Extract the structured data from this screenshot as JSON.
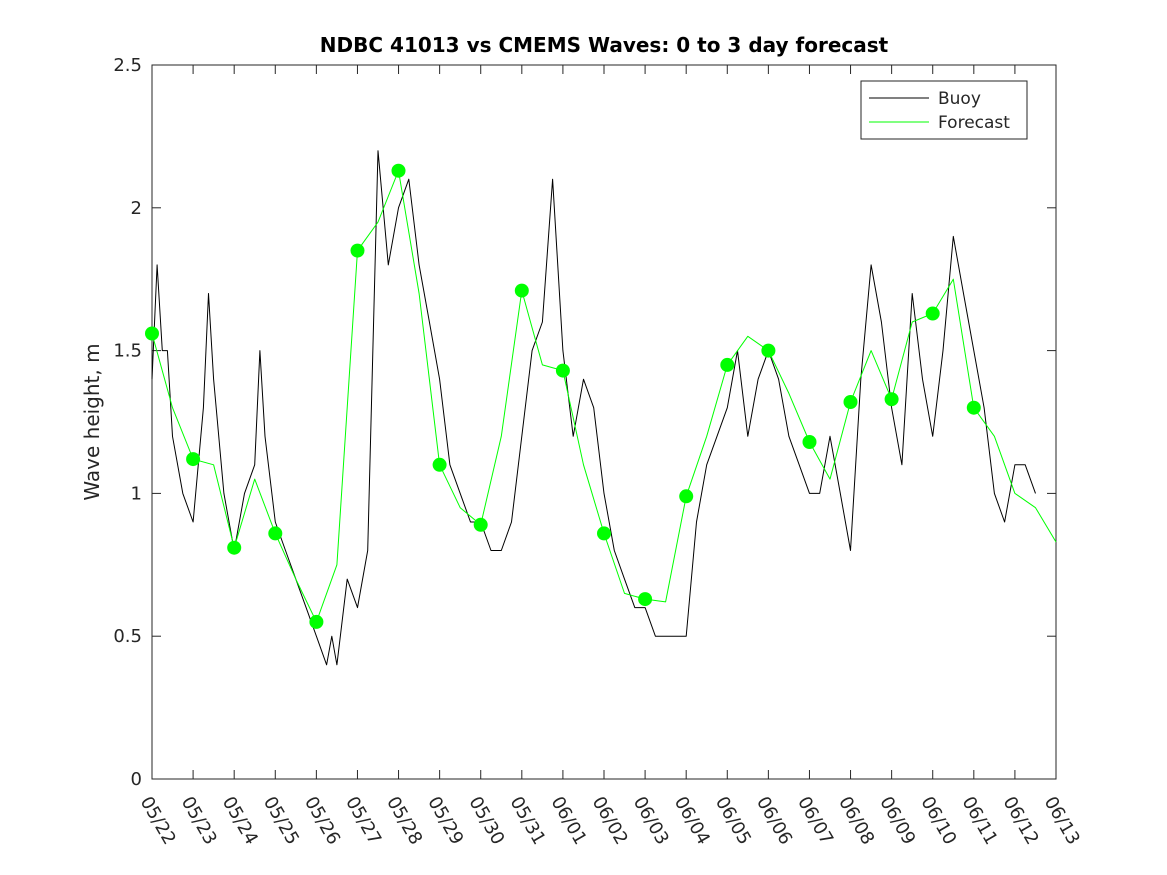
{
  "chart_data": {
    "type": "line",
    "title": "NDBC 41013 vs CMEMS Waves: 0 to 3 day forecast",
    "xlabel": "",
    "ylabel": "Wave height, m",
    "ylim": [
      0,
      2.5
    ],
    "yticks": [
      "0",
      "0.5",
      "1",
      "1.5",
      "2",
      "2.5"
    ],
    "xlim": [
      "05/22",
      "06/13"
    ],
    "xticks": [
      "05/22",
      "05/23",
      "05/24",
      "05/25",
      "05/26",
      "05/27",
      "05/28",
      "05/29",
      "05/30",
      "05/31",
      "06/01",
      "06/02",
      "06/03",
      "06/04",
      "06/05",
      "06/06",
      "06/07",
      "06/08",
      "06/09",
      "06/10",
      "06/11",
      "06/12",
      "06/13"
    ],
    "grid": false,
    "legend_position": "top-right",
    "colors": {
      "buoy": "#000000",
      "forecast": "#00ff00",
      "axes": "#262626"
    },
    "series": [
      {
        "name": "Buoy",
        "x": [
          "05/22 00:00",
          "05/22 03:00",
          "05/22 06:00",
          "05/22 09:00",
          "05/22 12:00",
          "05/22 18:00",
          "05/23 00:00",
          "05/23 06:00",
          "05/23 09:00",
          "05/23 12:00",
          "05/23 18:00",
          "05/24 00:00",
          "05/24 06:00",
          "05/24 12:00",
          "05/24 15:00",
          "05/24 18:00",
          "05/25 00:00",
          "05/25 06:00",
          "05/25 12:00",
          "05/25 18:00",
          "05/26 00:00",
          "05/26 06:00",
          "05/26 09:00",
          "05/26 12:00",
          "05/26 18:00",
          "05/27 00:00",
          "05/27 06:00",
          "05/27 12:00",
          "05/27 18:00",
          "05/28 00:00",
          "05/28 06:00",
          "05/28 12:00",
          "05/28 18:00",
          "05/29 00:00",
          "05/29 06:00",
          "05/29 12:00",
          "05/29 18:00",
          "05/30 00:00",
          "05/30 06:00",
          "05/30 12:00",
          "05/30 18:00",
          "05/31 00:00",
          "05/31 06:00",
          "05/31 12:00",
          "05/31 18:00",
          "06/01 00:00",
          "06/01 06:00",
          "06/01 12:00",
          "06/01 18:00",
          "06/02 00:00",
          "06/02 06:00",
          "06/02 12:00",
          "06/02 18:00",
          "06/03 00:00",
          "06/03 06:00",
          "06/03 12:00",
          "06/03 18:00",
          "06/04 00:00",
          "06/04 06:00",
          "06/04 12:00",
          "06/04 18:00",
          "06/05 00:00",
          "06/05 06:00",
          "06/05 12:00",
          "06/05 18:00",
          "06/06 00:00",
          "06/06 06:00",
          "06/06 12:00",
          "06/06 18:00",
          "06/07 00:00",
          "06/07 06:00",
          "06/07 12:00",
          "06/07 18:00",
          "06/08 00:00",
          "06/08 06:00",
          "06/08 12:00",
          "06/08 18:00",
          "06/09 00:00",
          "06/09 06:00",
          "06/09 12:00",
          "06/09 18:00",
          "06/10 00:00",
          "06/10 06:00",
          "06/10 12:00",
          "06/10 18:00",
          "06/11 00:00",
          "06/11 06:00",
          "06/11 12:00",
          "06/11 18:00",
          "06/12 00:00",
          "06/12 06:00",
          "06/12 12:00"
        ],
        "values": [
          1.4,
          1.8,
          1.5,
          1.5,
          1.2,
          1.0,
          0.9,
          1.3,
          1.7,
          1.4,
          1.0,
          0.8,
          1.0,
          1.1,
          1.5,
          1.2,
          0.9,
          0.8,
          0.7,
          0.6,
          0.5,
          0.4,
          0.5,
          0.4,
          0.7,
          0.6,
          0.8,
          2.2,
          1.8,
          2.0,
          2.1,
          1.8,
          1.6,
          1.4,
          1.1,
          1.0,
          0.9,
          0.9,
          0.8,
          0.8,
          0.9,
          1.2,
          1.5,
          1.6,
          2.1,
          1.5,
          1.2,
          1.4,
          1.3,
          1.0,
          0.8,
          0.7,
          0.6,
          0.6,
          0.5,
          0.5,
          0.5,
          0.5,
          0.9,
          1.1,
          1.2,
          1.3,
          1.5,
          1.2,
          1.4,
          1.5,
          1.4,
          1.2,
          1.1,
          1.0,
          1.0,
          1.2,
          1.0,
          0.8,
          1.4,
          1.8,
          1.6,
          1.3,
          1.1,
          1.7,
          1.4,
          1.2,
          1.5,
          1.9,
          1.7,
          1.5,
          1.3,
          1.0,
          0.9,
          1.1,
          1.1,
          1.0
        ]
      },
      {
        "name": "Forecast",
        "x": [
          "05/22 00:00",
          "05/22 12:00",
          "05/23 00:00",
          "05/23 12:00",
          "05/24 00:00",
          "05/24 12:00",
          "05/25 00:00",
          "05/25 12:00",
          "05/26 00:00",
          "05/26 12:00",
          "05/27 00:00",
          "05/27 12:00",
          "05/28 00:00",
          "05/28 12:00",
          "05/29 00:00",
          "05/29 12:00",
          "05/30 00:00",
          "05/30 12:00",
          "05/31 00:00",
          "05/31 12:00",
          "06/01 00:00",
          "06/01 12:00",
          "06/02 00:00",
          "06/02 12:00",
          "06/03 00:00",
          "06/03 12:00",
          "06/04 00:00",
          "06/04 12:00",
          "06/05 00:00",
          "06/05 12:00",
          "06/06 00:00",
          "06/06 12:00",
          "06/07 00:00",
          "06/07 12:00",
          "06/08 00:00",
          "06/08 12:00",
          "06/09 00:00",
          "06/09 12:00",
          "06/10 00:00",
          "06/10 12:00",
          "06/11 00:00",
          "06/11 12:00",
          "06/12 00:00",
          "06/12 12:00",
          "06/13 00:00"
        ],
        "values": [
          1.56,
          1.3,
          1.12,
          1.1,
          0.81,
          1.05,
          0.86,
          0.7,
          0.55,
          0.75,
          1.85,
          1.95,
          2.13,
          1.7,
          1.1,
          0.95,
          0.89,
          1.2,
          1.71,
          1.45,
          1.43,
          1.1,
          0.86,
          0.65,
          0.63,
          0.62,
          0.99,
          1.2,
          1.45,
          1.55,
          1.5,
          1.35,
          1.18,
          1.05,
          1.32,
          1.5,
          1.33,
          1.6,
          1.63,
          1.75,
          1.3,
          1.2,
          1.0,
          0.95,
          0.83
        ]
      }
    ],
    "markers": {
      "x": [
        "05/22",
        "05/23",
        "05/24",
        "05/25",
        "05/26",
        "05/27",
        "05/28",
        "05/29",
        "05/30",
        "05/31",
        "06/01",
        "06/02",
        "06/03",
        "06/04",
        "06/05",
        "06/06",
        "06/07",
        "06/08",
        "06/09",
        "06/10",
        "06/11"
      ],
      "values": [
        1.56,
        1.12,
        0.81,
        0.86,
        0.55,
        1.85,
        2.13,
        1.1,
        0.89,
        1.71,
        1.43,
        0.86,
        0.63,
        0.99,
        1.45,
        1.5,
        1.18,
        1.32,
        1.33,
        1.63,
        1.3
      ]
    }
  }
}
